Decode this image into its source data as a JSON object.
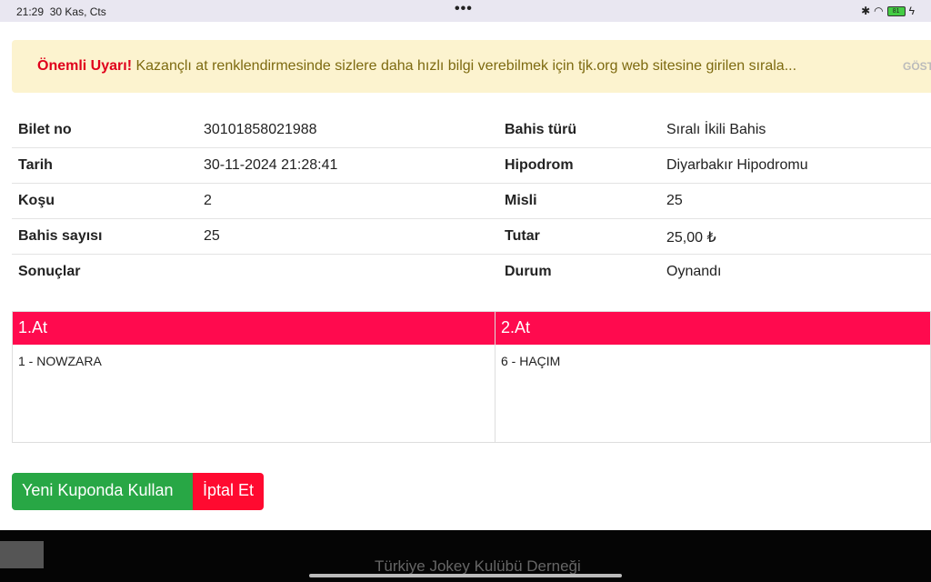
{
  "status": {
    "time": "21:29",
    "date": "30 Kas, Cts",
    "battery": "81"
  },
  "alert": {
    "title": "Önemli Uyarı!",
    "text": "Kazançlı at renklendirmesinde sizlere daha hızlı bilgi verebilmek için tjk.org web sitesine girilen sırala...",
    "show": "GÖST"
  },
  "info": [
    {
      "l1": "Bilet no",
      "v1": "30101858021988",
      "l2": "Bahis türü",
      "v2": "Sıralı İkili Bahis"
    },
    {
      "l1": "Tarih",
      "v1": "30-11-2024 21:28:41",
      "l2": "Hipodrom",
      "v2": "Diyarbakır Hipodromu"
    },
    {
      "l1": "Koşu",
      "v1": "2",
      "l2": "Misli",
      "v2": "25"
    },
    {
      "l1": "Bahis sayısı",
      "v1": "25",
      "l2": "Tutar",
      "v2": "25,00 ₺"
    },
    {
      "l1": "Sonuçlar",
      "v1": "",
      "l2": "Durum",
      "v2": "Oynandı"
    }
  ],
  "horses": [
    {
      "header": "1.At",
      "item": "1 - NOWZARA"
    },
    {
      "header": "2.At",
      "item": "6 - HAÇIM"
    }
  ],
  "buttons": {
    "reuse": "Yeni Kuponda Kullan",
    "cancel": "İptal Et"
  },
  "footer": {
    "text": "Türkiye Jokey Kulübü Derneği"
  },
  "colors": {
    "accent": "#ff0a4e",
    "green": "#28a745",
    "red": "#ff0a30",
    "alert_bg": "#fcf3cf"
  }
}
